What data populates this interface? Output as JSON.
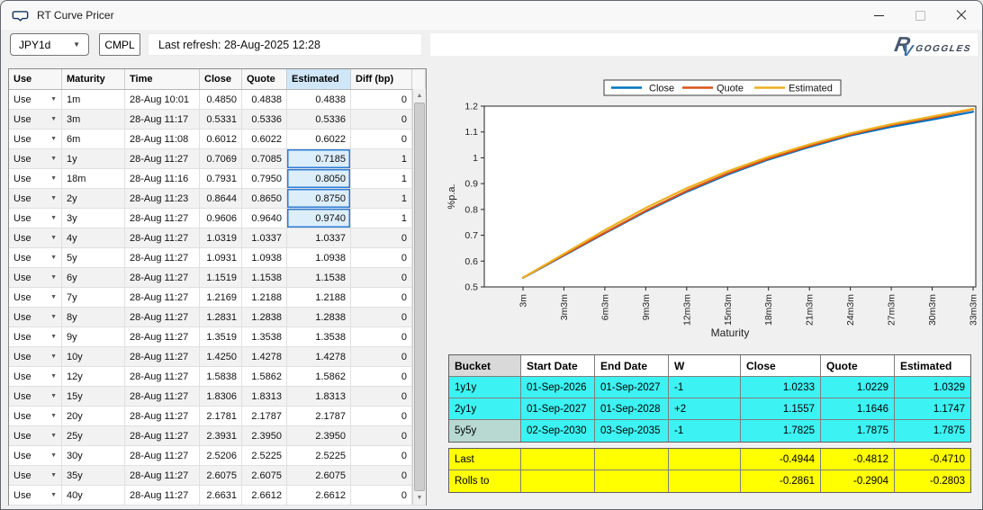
{
  "window": {
    "title": "RT Curve Pricer"
  },
  "toolbar": {
    "pair_selected": "JPY1d",
    "cmpl_label": "CMPL",
    "last_refresh": "Last refresh: 28-Aug-2025 12:28",
    "brand_r": "R",
    "brand_v": "V",
    "brand_name": "GOGGLES"
  },
  "rates_table": {
    "columns": [
      "Use",
      "Maturity",
      "Time",
      "Close",
      "Quote",
      "Estimated",
      "Diff (bp)"
    ],
    "rows": [
      {
        "use": "Use",
        "maturity": "1m",
        "time": "28-Aug 10:01",
        "close": "0.4850",
        "quote": "0.4838",
        "estimated": "0.4838",
        "diff": "0",
        "highlight": false
      },
      {
        "use": "Use",
        "maturity": "3m",
        "time": "28-Aug 11:17",
        "close": "0.5331",
        "quote": "0.5336",
        "estimated": "0.5336",
        "diff": "0",
        "highlight": false
      },
      {
        "use": "Use",
        "maturity": "6m",
        "time": "28-Aug 11:08",
        "close": "0.6012",
        "quote": "0.6022",
        "estimated": "0.6022",
        "diff": "0",
        "highlight": false
      },
      {
        "use": "Use",
        "maturity": "1y",
        "time": "28-Aug 11:27",
        "close": "0.7069",
        "quote": "0.7085",
        "estimated": "0.7185",
        "diff": "1",
        "highlight": true
      },
      {
        "use": "Use",
        "maturity": "18m",
        "time": "28-Aug 11:16",
        "close": "0.7931",
        "quote": "0.7950",
        "estimated": "0.8050",
        "diff": "1",
        "highlight": true
      },
      {
        "use": "Use",
        "maturity": "2y",
        "time": "28-Aug 11:23",
        "close": "0.8644",
        "quote": "0.8650",
        "estimated": "0.8750",
        "diff": "1",
        "highlight": true
      },
      {
        "use": "Use",
        "maturity": "3y",
        "time": "28-Aug 11:27",
        "close": "0.9606",
        "quote": "0.9640",
        "estimated": "0.9740",
        "diff": "1",
        "highlight": true
      },
      {
        "use": "Use",
        "maturity": "4y",
        "time": "28-Aug 11:27",
        "close": "1.0319",
        "quote": "1.0337",
        "estimated": "1.0337",
        "diff": "0",
        "highlight": false
      },
      {
        "use": "Use",
        "maturity": "5y",
        "time": "28-Aug 11:27",
        "close": "1.0931",
        "quote": "1.0938",
        "estimated": "1.0938",
        "diff": "0",
        "highlight": false
      },
      {
        "use": "Use",
        "maturity": "6y",
        "time": "28-Aug 11:27",
        "close": "1.1519",
        "quote": "1.1538",
        "estimated": "1.1538",
        "diff": "0",
        "highlight": false
      },
      {
        "use": "Use",
        "maturity": "7y",
        "time": "28-Aug 11:27",
        "close": "1.2169",
        "quote": "1.2188",
        "estimated": "1.2188",
        "diff": "0",
        "highlight": false
      },
      {
        "use": "Use",
        "maturity": "8y",
        "time": "28-Aug 11:27",
        "close": "1.2831",
        "quote": "1.2838",
        "estimated": "1.2838",
        "diff": "0",
        "highlight": false
      },
      {
        "use": "Use",
        "maturity": "9y",
        "time": "28-Aug 11:27",
        "close": "1.3519",
        "quote": "1.3538",
        "estimated": "1.3538",
        "diff": "0",
        "highlight": false
      },
      {
        "use": "Use",
        "maturity": "10y",
        "time": "28-Aug 11:27",
        "close": "1.4250",
        "quote": "1.4278",
        "estimated": "1.4278",
        "diff": "0",
        "highlight": false
      },
      {
        "use": "Use",
        "maturity": "12y",
        "time": "28-Aug 11:27",
        "close": "1.5838",
        "quote": "1.5862",
        "estimated": "1.5862",
        "diff": "0",
        "highlight": false
      },
      {
        "use": "Use",
        "maturity": "15y",
        "time": "28-Aug 11:27",
        "close": "1.8306",
        "quote": "1.8313",
        "estimated": "1.8313",
        "diff": "0",
        "highlight": false
      },
      {
        "use": "Use",
        "maturity": "20y",
        "time": "28-Aug 11:27",
        "close": "2.1781",
        "quote": "2.1787",
        "estimated": "2.1787",
        "diff": "0",
        "highlight": false
      },
      {
        "use": "Use",
        "maturity": "25y",
        "time": "28-Aug 11:27",
        "close": "2.3931",
        "quote": "2.3950",
        "estimated": "2.3950",
        "diff": "0",
        "highlight": false
      },
      {
        "use": "Use",
        "maturity": "30y",
        "time": "28-Aug 11:27",
        "close": "2.5206",
        "quote": "2.5225",
        "estimated": "2.5225",
        "diff": "0",
        "highlight": false
      },
      {
        "use": "Use",
        "maturity": "35y",
        "time": "28-Aug 11:27",
        "close": "2.6075",
        "quote": "2.6075",
        "estimated": "2.6075",
        "diff": "0",
        "highlight": false
      },
      {
        "use": "Use",
        "maturity": "40y",
        "time": "28-Aug 11:27",
        "close": "2.6631",
        "quote": "2.6612",
        "estimated": "2.6612",
        "diff": "0",
        "highlight": false
      }
    ]
  },
  "chart_data": {
    "type": "line",
    "x": [
      "3m",
      "3m3m",
      "6m3m",
      "9m3m",
      "12m3m",
      "15m3m",
      "18m3m",
      "21m3m",
      "24m3m",
      "27m3m",
      "30m3m",
      "33m3m"
    ],
    "series": [
      {
        "name": "Close",
        "color": "#0072BD",
        "values": [
          0.535,
          0.622,
          0.708,
          0.792,
          0.868,
          0.935,
          0.993,
          1.042,
          1.086,
          1.12,
          1.148,
          1.178
        ]
      },
      {
        "name": "Quote",
        "color": "#D95319",
        "values": [
          0.536,
          0.624,
          0.71,
          0.795,
          0.872,
          0.939,
          0.997,
          1.046,
          1.09,
          1.126,
          1.155,
          1.188
        ]
      },
      {
        "name": "Estimated",
        "color": "#EDB120",
        "values": [
          0.536,
          0.628,
          0.72,
          0.806,
          0.882,
          0.948,
          1.004,
          1.052,
          1.095,
          1.13,
          1.16,
          1.19
        ]
      }
    ],
    "xlabel": "Maturity",
    "ylabel": "%p.a.",
    "ylim": [
      0.5,
      1.2
    ],
    "ytick_labels": [
      "0.5",
      "0.6",
      "0.7",
      "0.8",
      "0.9",
      "1",
      "1.1",
      "1.2"
    ],
    "legend_position": "top",
    "grid": false
  },
  "bucket_table": {
    "columns": [
      "Bucket",
      "Start Date",
      "End Date",
      "W",
      "Close",
      "Quote",
      "Estimated"
    ],
    "rows": [
      {
        "bucket": "1y1y",
        "start": "01-Sep-2026",
        "end": "01-Sep-2027",
        "w": "-1",
        "close": "1.0233",
        "quote": "1.0229",
        "estimated": "1.0329",
        "selected": false
      },
      {
        "bucket": "2y1y",
        "start": "01-Sep-2027",
        "end": "01-Sep-2028",
        "w": "+2",
        "close": "1.1557",
        "quote": "1.1646",
        "estimated": "1.1747",
        "selected": false
      },
      {
        "bucket": "5y5y",
        "start": "02-Sep-2030",
        "end": "03-Sep-2035",
        "w": "-1",
        "close": "1.7825",
        "quote": "1.7875",
        "estimated": "1.7875",
        "selected": true
      }
    ]
  },
  "roll_table": {
    "rows": [
      {
        "label": "Last",
        "close": "-0.4944",
        "quote": "-0.4812",
        "estimated": "-0.4710"
      },
      {
        "label": "Rolls to",
        "close": "-0.2861",
        "quote": "-0.2904",
        "estimated": "-0.2803"
      }
    ]
  }
}
